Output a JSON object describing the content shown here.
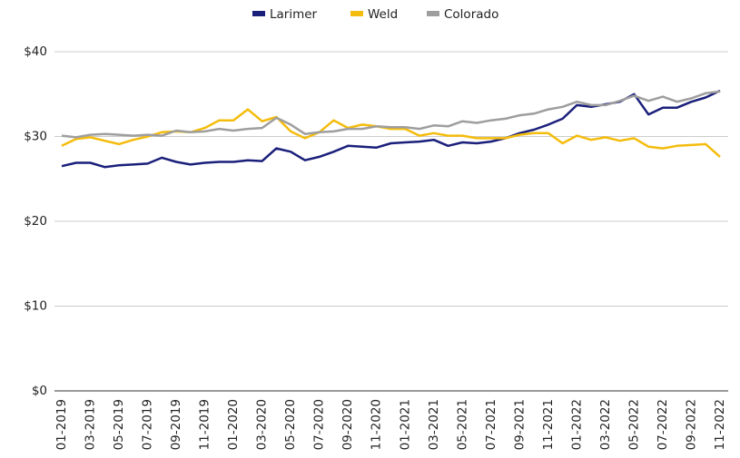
{
  "chart_data": {
    "type": "line",
    "categories": [
      "01-2019",
      null,
      "03-2019",
      null,
      "05-2019",
      null,
      "07-2019",
      null,
      "09-2019",
      null,
      "11-2019",
      null,
      "01-2020",
      null,
      "03-2020",
      null,
      "05-2020",
      null,
      "07-2020",
      null,
      "09-2020",
      null,
      "11-2020",
      null,
      "01-2021",
      null,
      "03-2021",
      null,
      "05-2021",
      null,
      "07-2021",
      null,
      "09-2021",
      null,
      "11-2021",
      null,
      "01-2022",
      null,
      "03-2022",
      null,
      "05-2022",
      null,
      "07-2022",
      null,
      "09-2022",
      null,
      "11-2022"
    ],
    "series": [
      {
        "name": "Larimer",
        "color": "#1a1f7a",
        "values": [
          26.5,
          26.9,
          26.9,
          26.4,
          26.6,
          26.7,
          26.8,
          27.5,
          27.0,
          26.7,
          26.9,
          27.0,
          27.0,
          27.2,
          27.1,
          28.6,
          28.2,
          27.2,
          27.6,
          28.2,
          28.9,
          28.8,
          28.7,
          29.2,
          29.3,
          29.4,
          29.6,
          28.9,
          29.3,
          29.2,
          29.4,
          29.8,
          30.4,
          30.8,
          31.4,
          32.1,
          33.7,
          33.5,
          33.8,
          34.1,
          35.0,
          32.6,
          33.4,
          33.4,
          34.1,
          34.6,
          35.4
        ]
      },
      {
        "name": "Weld",
        "color": "#f4bc0c",
        "values": [
          28.9,
          29.7,
          29.9,
          29.5,
          29.1,
          29.6,
          30.0,
          30.5,
          30.6,
          30.5,
          31.0,
          31.9,
          31.9,
          33.2,
          31.8,
          32.3,
          30.6,
          29.8,
          30.5,
          31.9,
          31.0,
          31.4,
          31.2,
          30.9,
          30.9,
          30.1,
          30.4,
          30.1,
          30.1,
          29.8,
          29.8,
          29.8,
          30.2,
          30.4,
          30.4,
          29.2,
          30.1,
          29.6,
          29.9,
          29.5,
          29.8,
          28.8,
          28.6,
          28.9,
          29.0,
          29.1,
          27.6
        ]
      },
      {
        "name": "Colorado",
        "color": "#9e9e9e",
        "values": [
          30.1,
          29.9,
          30.2,
          30.3,
          30.2,
          30.1,
          30.2,
          30.1,
          30.7,
          30.5,
          30.6,
          30.9,
          30.7,
          30.9,
          31.0,
          32.2,
          31.4,
          30.3,
          30.5,
          30.6,
          30.9,
          30.9,
          31.2,
          31.1,
          31.1,
          30.9,
          31.3,
          31.2,
          31.8,
          31.6,
          31.9,
          32.1,
          32.5,
          32.7,
          33.2,
          33.5,
          34.1,
          33.7,
          33.7,
          34.2,
          34.8,
          34.2,
          34.7,
          34.1,
          34.5,
          35.1,
          35.3
        ]
      }
    ],
    "ylim": [
      0,
      40
    ],
    "yticks": [
      {
        "value": 0,
        "label": "$0"
      },
      {
        "value": 10,
        "label": "$10"
      },
      {
        "value": 20,
        "label": "$20"
      },
      {
        "value": 30,
        "label": "$30"
      },
      {
        "value": 40,
        "label": "$40"
      }
    ],
    "grid": true,
    "legend": "top"
  }
}
